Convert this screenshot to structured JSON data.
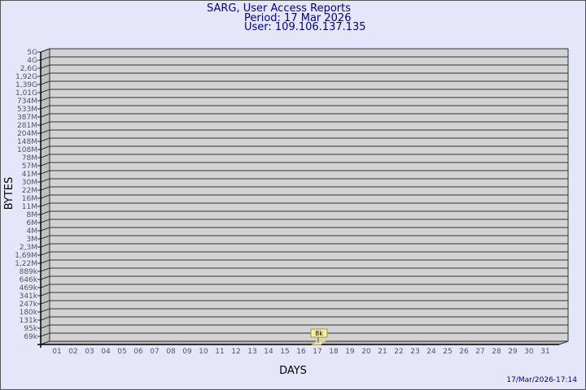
{
  "chart_data": {
    "type": "bar",
    "title": "SARG, User Access Reports",
    "subtitle_period": "Period: 17 Mar 2026",
    "subtitle_user": "User: 109.106.137.135",
    "xlabel": "DAYS",
    "ylabel": "BYTES",
    "y_scale": "log",
    "y_tick_labels": [
      "5G",
      "4G",
      "2,6G",
      "1,92G",
      "1,39G",
      "1,01G",
      "734M",
      "533M",
      "387M",
      "281M",
      "204M",
      "148M",
      "108M",
      "78M",
      "57M",
      "41M",
      "30M",
      "22M",
      "16M",
      "11M",
      "8M",
      "6M",
      "4M",
      "3M",
      "2,3M",
      "1,69M",
      "1,22M",
      "889k",
      "646k",
      "469k",
      "341k",
      "247k",
      "180k",
      "131k",
      "95k",
      "69k"
    ],
    "categories": [
      "01",
      "02",
      "03",
      "04",
      "05",
      "06",
      "07",
      "08",
      "09",
      "10",
      "11",
      "12",
      "13",
      "14",
      "15",
      "16",
      "17",
      "18",
      "19",
      "20",
      "21",
      "22",
      "23",
      "24",
      "25",
      "26",
      "27",
      "28",
      "29",
      "30",
      "31"
    ],
    "bars": [
      {
        "day": "17",
        "value": 8000,
        "label": "8k"
      }
    ],
    "grid": true,
    "colors": {
      "background": "#e6e6fa",
      "plot": "#d3d3d3",
      "bar": "#f5e6a0",
      "title": "#00008b"
    }
  },
  "footer": {
    "timestamp": "17/Mar/2026-17:14"
  }
}
